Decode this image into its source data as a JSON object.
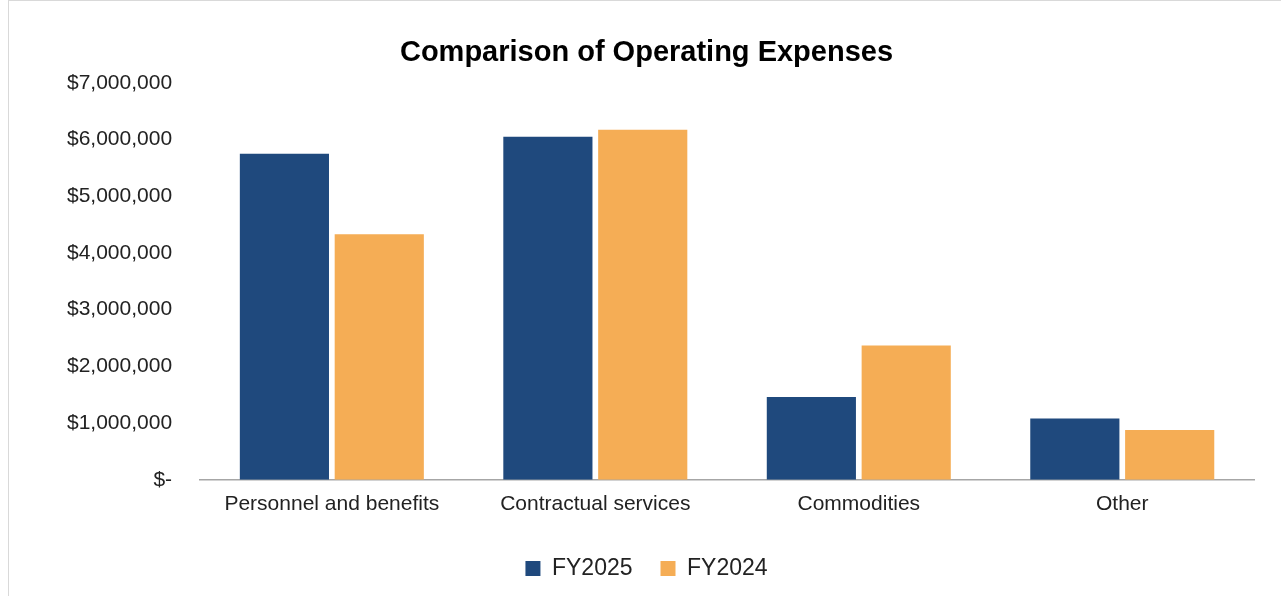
{
  "chart_data": {
    "type": "bar",
    "title": "Comparison of Operating Expenses",
    "categories": [
      "Personnel and benefits",
      "Contractual services",
      "Commodities",
      "Other"
    ],
    "series": [
      {
        "name": "FY2025",
        "color": "#1f497d",
        "values": [
          5750000,
          6050000,
          1460000,
          1080000
        ]
      },
      {
        "name": "FY2024",
        "color": "#f5ad55",
        "values": [
          4330000,
          6170000,
          2370000,
          880000
        ]
      }
    ],
    "ylim": [
      0,
      7000000
    ],
    "yticks": [
      {
        "value": 0,
        "label": "$-"
      },
      {
        "value": 1000000,
        "label": "$1,000,000"
      },
      {
        "value": 2000000,
        "label": "$2,000,000"
      },
      {
        "value": 3000000,
        "label": "$3,000,000"
      },
      {
        "value": 4000000,
        "label": "$4,000,000"
      },
      {
        "value": 5000000,
        "label": "$5,000,000"
      },
      {
        "value": 6000000,
        "label": "$6,000,000"
      },
      {
        "value": 7000000,
        "label": "$7,000,000"
      }
    ],
    "grid": false,
    "legend": "bottom"
  }
}
